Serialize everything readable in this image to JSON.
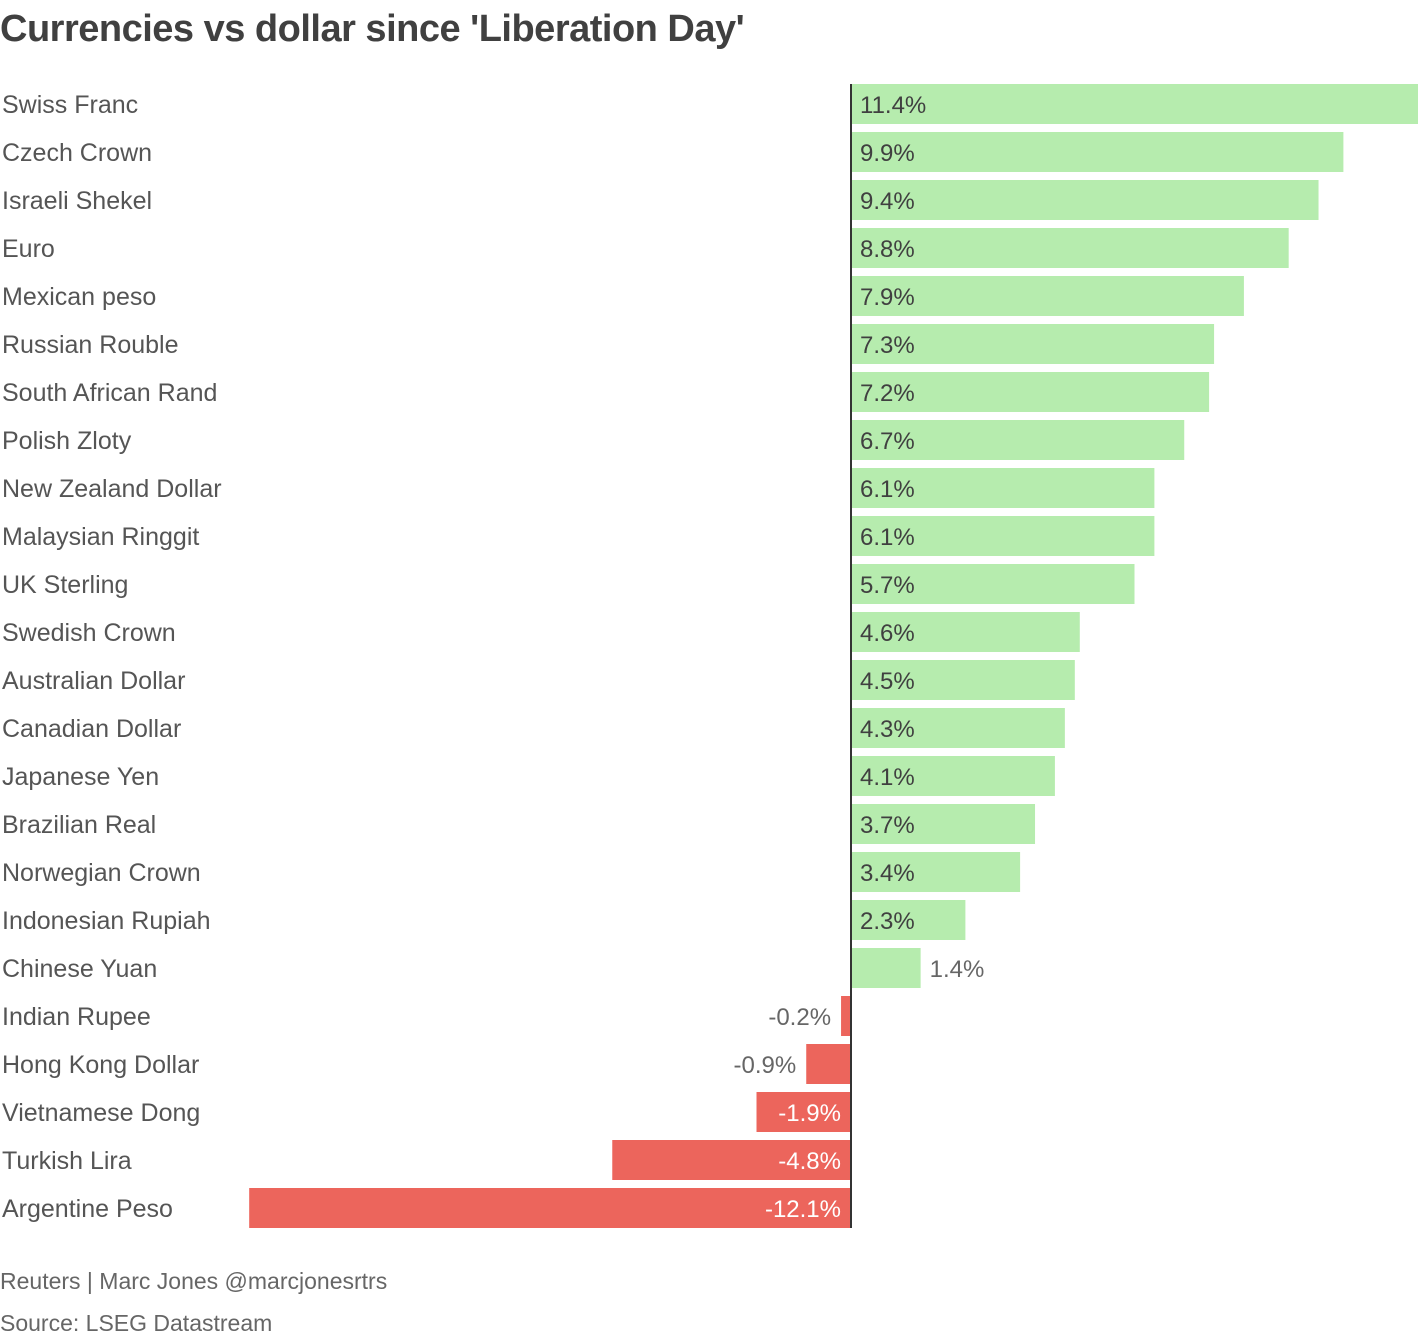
{
  "chart_data": {
    "type": "bar",
    "orientation": "horizontal",
    "title": "Currencies vs dollar since 'Liberation Day'",
    "xlabel": "",
    "ylabel": "",
    "xlim": [
      -12.1,
      11.4
    ],
    "categories": [
      "Swiss Franc",
      "Czech Crown",
      "Israeli Shekel",
      "Euro",
      "Mexican peso",
      "Russian Rouble",
      "South African Rand",
      "Polish Zloty",
      "New Zealand Dollar",
      "Malaysian Ringgit",
      "UK Sterling",
      "Swedish Crown",
      "Australian Dollar",
      "Canadian Dollar",
      "Japanese Yen",
      "Brazilian Real",
      "Norwegian Crown",
      "Indonesian Rupiah",
      "Chinese Yuan",
      "Indian Rupee",
      "Hong Kong Dollar",
      "Vietnamese Dong",
      "Turkish Lira",
      "Argentine Peso"
    ],
    "values": [
      11.4,
      9.9,
      9.4,
      8.8,
      7.9,
      7.3,
      7.2,
      6.7,
      6.1,
      6.1,
      5.7,
      4.6,
      4.5,
      4.3,
      4.1,
      3.7,
      3.4,
      2.3,
      1.4,
      -0.2,
      -0.9,
      -1.9,
      -4.8,
      -12.1
    ],
    "value_labels": [
      "11.4%",
      "9.9%",
      "9.4%",
      "8.8%",
      "7.9%",
      "7.3%",
      "7.2%",
      "6.7%",
      "6.1%",
      "6.1%",
      "5.7%",
      "4.6%",
      "4.5%",
      "4.3%",
      "4.1%",
      "3.7%",
      "3.4%",
      "2.3%",
      "1.4%",
      "-0.2%",
      "-0.9%",
      "-1.9%",
      "-4.8%",
      "-12.1%"
    ],
    "colors": {
      "positive": "#b6ecae",
      "negative": "#ec655c",
      "axis": "#333333",
      "label_on_positive": "#404040",
      "label_on_negative": "#ffffff",
      "label_outside": "#666666"
    }
  },
  "footer": {
    "credit": "Reuters | Marc Jones @marcjonesrtrs",
    "source": "Source: LSEG Datastream"
  }
}
